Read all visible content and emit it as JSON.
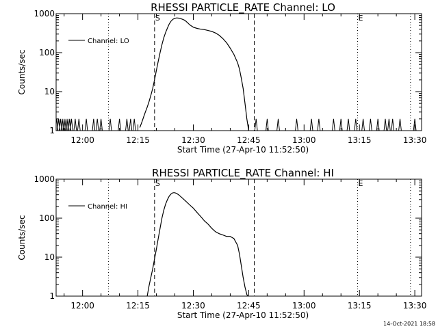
{
  "footer_timestamp": "14-Oct-2021 18:58",
  "chart_data": [
    {
      "type": "line",
      "title": "RHESSI PARTICLE_RATE Channel: LO",
      "xlabel": "Start Time (27-Apr-10 11:52:50)",
      "ylabel": "Counts/sec",
      "legend": "Channel: LO",
      "legend_position": "top-left",
      "y_scale": "log",
      "xlim": [
        "11:52:50",
        "13:31:50"
      ],
      "ylim": [
        1,
        1000
      ],
      "xticks": [
        "12:00",
        "12:15",
        "12:30",
        "12:45",
        "13:00",
        "13:15",
        "13:30"
      ],
      "yticks": [
        "1",
        "10",
        "100",
        "1000"
      ],
      "vlines": [
        {
          "time": "12:07:00",
          "style": "dotted",
          "label": ""
        },
        {
          "time": "12:19:30",
          "style": "dashed",
          "label": "S"
        },
        {
          "time": "12:46:30",
          "style": "dashed",
          "label": ""
        },
        {
          "time": "13:14:30",
          "style": "dotted",
          "label": "E"
        },
        {
          "time": "13:28:50",
          "style": "dotted",
          "label": ""
        }
      ],
      "series": [
        {
          "name": "Channel: LO",
          "x": [
            "12:15:30",
            "12:16:00",
            "12:16:30",
            "12:17:00",
            "12:17:30",
            "12:18:00",
            "12:18:30",
            "12:19:00",
            "12:19:30",
            "12:20:00",
            "12:20:30",
            "12:21:00",
            "12:21:30",
            "12:22:00",
            "12:22:30",
            "12:23:00",
            "12:23:30",
            "12:24:00",
            "12:24:30",
            "12:25:00",
            "12:25:30",
            "12:26:00",
            "12:26:30",
            "12:27:00",
            "12:27:30",
            "12:28:00",
            "12:28:30",
            "12:29:00",
            "12:30:00",
            "12:31:00",
            "12:32:00",
            "12:33:00",
            "12:34:00",
            "12:35:00",
            "12:36:00",
            "12:37:00",
            "12:38:00",
            "12:39:00",
            "12:40:00",
            "12:41:00",
            "12:42:00",
            "12:42:30",
            "12:43:00",
            "12:43:30",
            "12:44:00",
            "12:44:30",
            "12:45:00"
          ],
          "y": [
            1.2,
            1.6,
            2.2,
            3,
            4,
            5.5,
            8,
            12,
            20,
            35,
            60,
            100,
            160,
            240,
            330,
            430,
            550,
            650,
            720,
            760,
            780,
            770,
            750,
            720,
            690,
            640,
            580,
            520,
            450,
            420,
            400,
            390,
            370,
            350,
            320,
            280,
            230,
            180,
            130,
            90,
            55,
            38,
            22,
            12,
            5,
            2,
            1
          ]
        }
      ],
      "baseline_spikes": [
        "11:53:00",
        "11:53:30",
        "11:54:00",
        "11:54:30",
        "11:55:00",
        "11:55:30",
        "11:56:00",
        "11:56:30",
        "11:57:00",
        "11:58:00",
        "11:59:00",
        "12:01:00",
        "12:03:00",
        "12:04:00",
        "12:05:00",
        "12:07:30",
        "12:10:00",
        "12:12:00",
        "12:13:00",
        "12:14:00",
        "12:47:00",
        "12:50:00",
        "12:53:00",
        "12:58:00",
        "13:02:00",
        "13:04:00",
        "13:08:00",
        "13:10:00",
        "13:12:00",
        "13:14:00",
        "13:16:00",
        "13:18:00",
        "13:20:00",
        "13:22:00",
        "13:23:00",
        "13:24:00",
        "13:26:00",
        "13:30:00"
      ]
    },
    {
      "type": "line",
      "title": "RHESSI PARTICLE_RATE Channel: HI",
      "xlabel": "Start Time (27-Apr-10 11:52:50)",
      "ylabel": "Counts/sec",
      "legend": "Channel: HI",
      "legend_position": "top-left",
      "y_scale": "log",
      "xlim": [
        "11:52:50",
        "13:31:50"
      ],
      "ylim": [
        1,
        1000
      ],
      "xticks": [
        "12:00",
        "12:15",
        "12:30",
        "12:45",
        "13:00",
        "13:15",
        "13:30"
      ],
      "yticks": [
        "1",
        "10",
        "100",
        "1000"
      ],
      "vlines": [
        {
          "time": "12:07:00",
          "style": "dotted",
          "label": ""
        },
        {
          "time": "12:19:30",
          "style": "dashed",
          "label": "S"
        },
        {
          "time": "12:46:30",
          "style": "dashed",
          "label": ""
        },
        {
          "time": "13:14:30",
          "style": "dotted",
          "label": "E"
        },
        {
          "time": "13:28:50",
          "style": "dotted",
          "label": ""
        }
      ],
      "series": [
        {
          "name": "Channel: HI",
          "x": [
            "12:17:30",
            "12:18:00",
            "12:18:30",
            "12:19:00",
            "12:19:30",
            "12:20:00",
            "12:20:30",
            "12:21:00",
            "12:21:30",
            "12:22:00",
            "12:22:30",
            "12:23:00",
            "12:23:30",
            "12:24:00",
            "12:24:30",
            "12:25:00",
            "12:25:30",
            "12:26:00",
            "12:27:00",
            "12:28:00",
            "12:29:00",
            "12:30:00",
            "12:31:00",
            "12:32:00",
            "12:33:00",
            "12:34:00",
            "12:35:00",
            "12:36:00",
            "12:37:00",
            "12:38:00",
            "12:39:00",
            "12:40:00",
            "12:41:00",
            "12:42:00",
            "12:42:30",
            "12:43:00",
            "12:43:30",
            "12:44:00",
            "12:44:30",
            "12:45:00"
          ],
          "y": [
            1,
            1.8,
            3,
            5,
            9,
            16,
            30,
            55,
            100,
            160,
            230,
            300,
            370,
            420,
            450,
            450,
            430,
            400,
            330,
            270,
            220,
            180,
            140,
            110,
            85,
            70,
            55,
            45,
            40,
            37,
            34,
            34,
            30,
            20,
            12,
            6,
            3,
            1.7,
            1.1,
            0.9
          ]
        }
      ],
      "baseline_spikes": []
    }
  ]
}
